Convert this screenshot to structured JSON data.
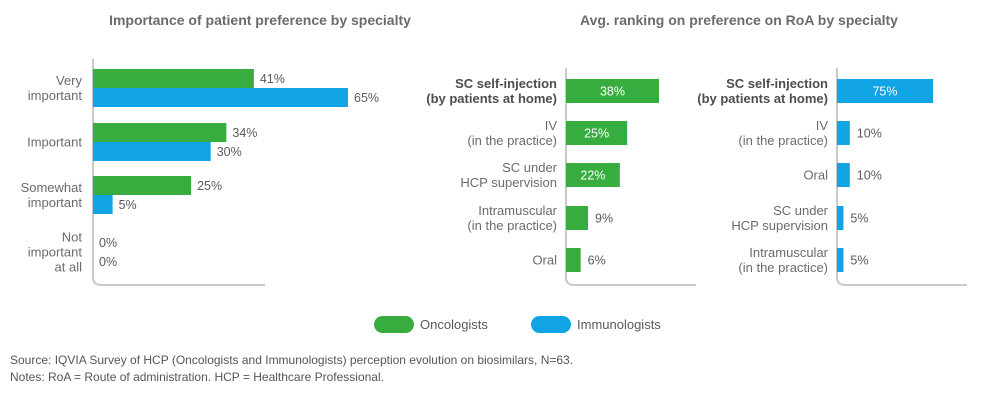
{
  "colors": {
    "oncologists": "#38ad3f",
    "immunologists": "#10a4e4",
    "axis": "#c9c9c9"
  },
  "legend": {
    "oncologists": "Oncologists",
    "immunologists": "Immunologists"
  },
  "footer": {
    "source": "Source: IQVIA Survey of HCP (Oncologists and Immunologists) perception evolution on biosimilars, N=63.",
    "notes": "Notes: RoA = Route of administration. HCP = Healthcare Professional."
  },
  "chart_data": [
    {
      "type": "bar",
      "orientation": "horizontal",
      "title": "Importance of patient preference by specialty",
      "categories": [
        [
          "Very",
          "important"
        ],
        [
          "Important"
        ],
        [
          "Somewhat",
          "important"
        ],
        [
          "Not",
          "important",
          "at all"
        ]
      ],
      "series": [
        {
          "name": "Oncologists",
          "values": [
            41,
            34,
            25,
            0
          ],
          "labels": [
            "41%",
            "34%",
            "25%",
            "0%"
          ]
        },
        {
          "name": "Immunologists",
          "values": [
            65,
            30,
            5,
            0
          ],
          "labels": [
            "65%",
            "30%",
            "5%",
            "0%"
          ]
        }
      ],
      "xlim": [
        0,
        100
      ]
    },
    {
      "type": "bar",
      "orientation": "horizontal",
      "title": "Avg. ranking on preference on RoA by specialty",
      "series_name": "Oncologists",
      "categories": [
        [
          "SC self-injection",
          "(by patients at home)"
        ],
        [
          "IV",
          "(in the practice)"
        ],
        [
          "SC under",
          "HCP supervision"
        ],
        [
          "Intramuscular",
          "(in the practice)"
        ],
        [
          "Oral"
        ]
      ],
      "bold_category": 0,
      "values": [
        38,
        25,
        22,
        9,
        6
      ],
      "labels": [
        "38%",
        "25%",
        "22%",
        "9%",
        "6%"
      ],
      "xlim": [
        0,
        100
      ]
    },
    {
      "type": "bar",
      "orientation": "horizontal",
      "series_name": "Immunologists",
      "categories": [
        [
          "SC self-injection",
          "(by patients at home)"
        ],
        [
          "IV",
          "(in the practice)"
        ],
        [
          "Oral"
        ],
        [
          "SC under",
          "HCP supervision"
        ],
        [
          "Intramuscular",
          "(in the practice)"
        ]
      ],
      "bold_category": 0,
      "values": [
        75,
        10,
        10,
        5,
        5
      ],
      "labels": [
        "75%",
        "10%",
        "10%",
        "5%",
        "5%"
      ],
      "xlim": [
        0,
        100
      ]
    }
  ]
}
